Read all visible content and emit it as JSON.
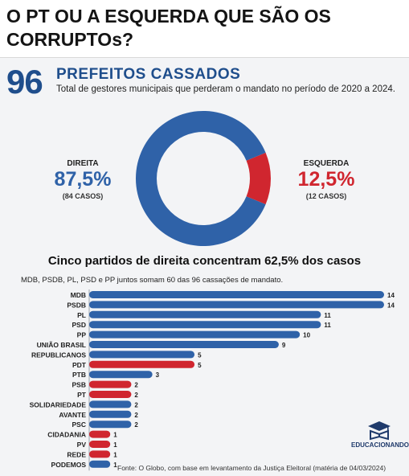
{
  "headline": "O PT OU A ESQUERDA QUE SÃO OS CORRUPTOs?",
  "header": {
    "big_number": "96",
    "title": "PREFEITOS CASSADOS",
    "subtitle": "Total de gestores municipais que perderam o mandato no período de 2020 a 2024."
  },
  "donut": {
    "left": {
      "label": "DIREITA",
      "percent": "87,5%",
      "cases": "(84 CASOS)",
      "value": 84,
      "color": "#2f62a8"
    },
    "right": {
      "label": "ESQUERDA",
      "percent": "12,5%",
      "cases": "(12 CASOS)",
      "value": 12,
      "color": "#d0262f"
    }
  },
  "section": {
    "title": "Cinco partidos de direita concentram 62,5% dos casos",
    "subtitle": "MDB, PSDB, PL, PSD e PP juntos somam 60 das 96 cassações de mandato."
  },
  "colors": {
    "right_wing": "#2f62a8",
    "left_wing": "#d0262f",
    "accent": "#1f4e8c"
  },
  "chart_data": [
    {
      "type": "pie",
      "categories": [
        "DIREITA",
        "ESQUERDA"
      ],
      "values": [
        84,
        12
      ]
    },
    {
      "type": "bar",
      "orientation": "horizontal",
      "categories": [
        "MDB",
        "PSDB",
        "PL",
        "PSD",
        "PP",
        "UNIÃO BRASIL",
        "REPUBLICANOS",
        "PDT",
        "PTB",
        "PSB",
        "PT",
        "SOLIDARIEDADE",
        "AVANTE",
        "PSC",
        "CIDADANIA",
        "PV",
        "REDE",
        "PODEMOS"
      ],
      "values": [
        14,
        14,
        11,
        11,
        10,
        9,
        5,
        5,
        3,
        2,
        2,
        2,
        2,
        2,
        1,
        1,
        1,
        1
      ],
      "bar_colors": [
        "#2f62a8",
        "#2f62a8",
        "#2f62a8",
        "#2f62a8",
        "#2f62a8",
        "#2f62a8",
        "#2f62a8",
        "#d0262f",
        "#2f62a8",
        "#d0262f",
        "#d0262f",
        "#2f62a8",
        "#2f62a8",
        "#2f62a8",
        "#d0262f",
        "#d0262f",
        "#d0262f",
        "#2f62a8"
      ],
      "xlim": [
        0,
        14
      ]
    }
  ],
  "brand": {
    "name": "EDUCACIONANDO"
  },
  "source_note": "Fonte: O Globo, com base em levantamento da Justiça Eleitoral (matéria de 04/03/2024)"
}
